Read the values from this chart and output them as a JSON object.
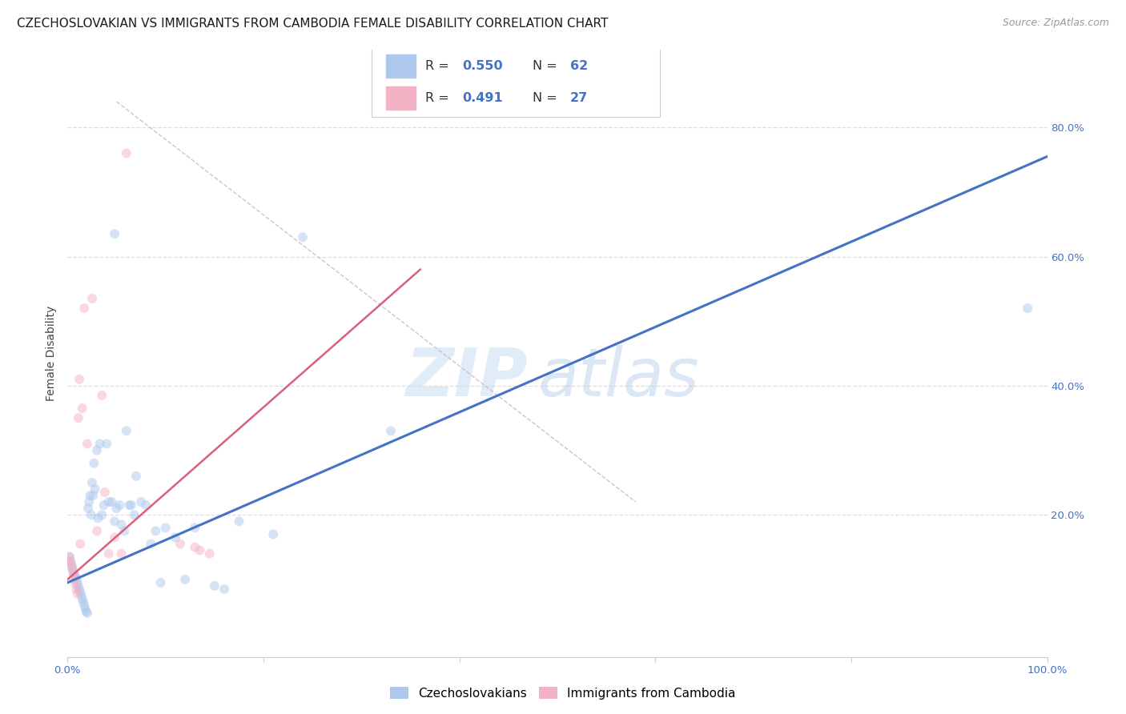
{
  "title": "CZECHOSLOVAKIAN VS IMMIGRANTS FROM CAMBODIA FEMALE DISABILITY CORRELATION CHART",
  "source": "Source: ZipAtlas.com",
  "ylabel": "Female Disability",
  "watermark_zip": "ZIP",
  "watermark_atlas": "atlas",
  "legend_entries": [
    {
      "label": "Czechoslovakians",
      "R": "0.550",
      "N": "62",
      "color": "#adc8ec",
      "line_color": "#4472c4"
    },
    {
      "label": "Immigrants from Cambodia",
      "R": "0.491",
      "N": "27",
      "color": "#f4b3c4",
      "line_color": "#d9607a"
    }
  ],
  "blue_scatter_x": [
    0.002,
    0.003,
    0.004,
    0.005,
    0.006,
    0.007,
    0.008,
    0.009,
    0.01,
    0.011,
    0.012,
    0.013,
    0.014,
    0.015,
    0.016,
    0.017,
    0.018,
    0.019,
    0.02,
    0.021,
    0.022,
    0.023,
    0.024,
    0.025,
    0.026,
    0.027,
    0.028,
    0.03,
    0.031,
    0.033,
    0.035,
    0.037,
    0.04,
    0.042,
    0.045,
    0.048,
    0.05,
    0.053,
    0.055,
    0.058,
    0.06,
    0.063,
    0.065,
    0.068,
    0.07,
    0.075,
    0.08,
    0.085,
    0.09,
    0.095,
    0.1,
    0.11,
    0.12,
    0.13,
    0.15,
    0.16,
    0.175,
    0.21,
    0.24,
    0.33,
    0.98,
    0.048
  ],
  "blue_scatter_y": [
    0.135,
    0.128,
    0.122,
    0.118,
    0.112,
    0.108,
    0.104,
    0.1,
    0.095,
    0.09,
    0.085,
    0.08,
    0.075,
    0.07,
    0.065,
    0.06,
    0.055,
    0.05,
    0.048,
    0.21,
    0.22,
    0.23,
    0.2,
    0.25,
    0.23,
    0.28,
    0.24,
    0.3,
    0.195,
    0.31,
    0.2,
    0.215,
    0.31,
    0.22,
    0.22,
    0.19,
    0.21,
    0.215,
    0.185,
    0.175,
    0.33,
    0.215,
    0.215,
    0.2,
    0.26,
    0.22,
    0.215,
    0.155,
    0.175,
    0.095,
    0.18,
    0.165,
    0.1,
    0.18,
    0.09,
    0.085,
    0.19,
    0.17,
    0.63,
    0.33,
    0.52,
    0.635
  ],
  "pink_scatter_x": [
    0.002,
    0.003,
    0.004,
    0.005,
    0.006,
    0.007,
    0.008,
    0.009,
    0.01,
    0.011,
    0.012,
    0.013,
    0.015,
    0.017,
    0.02,
    0.025,
    0.03,
    0.035,
    0.038,
    0.042,
    0.048,
    0.055,
    0.06,
    0.115,
    0.13,
    0.135,
    0.145
  ],
  "pink_scatter_y": [
    0.135,
    0.128,
    0.122,
    0.115,
    0.108,
    0.1,
    0.093,
    0.085,
    0.078,
    0.35,
    0.41,
    0.155,
    0.365,
    0.52,
    0.31,
    0.535,
    0.175,
    0.385,
    0.235,
    0.14,
    0.165,
    0.14,
    0.76,
    0.155,
    0.15,
    0.145,
    0.14
  ],
  "blue_line_x": [
    0.0,
    1.0
  ],
  "blue_line_y": [
    0.095,
    0.755
  ],
  "pink_line_x": [
    0.0,
    0.36
  ],
  "pink_line_y": [
    0.1,
    0.58
  ],
  "diag_line_x": [
    0.05,
    0.58
  ],
  "diag_line_y": [
    0.84,
    0.22
  ],
  "xlim": [
    0.0,
    1.0
  ],
  "ylim": [
    -0.02,
    0.92
  ],
  "xtick_vals": [
    0.0,
    0.2,
    0.4,
    0.6,
    0.8,
    1.0
  ],
  "xtick_labels_bottom": [
    "0.0%",
    "",
    "",
    "",
    "",
    "100.0%"
  ],
  "ytick_vals": [
    0.2,
    0.4,
    0.6,
    0.8
  ],
  "ytick_labels_right": [
    "20.0%",
    "40.0%",
    "60.0%",
    "80.0%"
  ],
  "grid_color": "#dedede",
  "background_color": "#ffffff",
  "scatter_alpha": 0.5,
  "scatter_size": 75,
  "title_fontsize": 11,
  "axis_label_fontsize": 10,
  "tick_fontsize": 9.5,
  "blue_line_color": "#4472c4",
  "pink_line_color": "#d9607a",
  "diag_color": "#d0b0bb"
}
